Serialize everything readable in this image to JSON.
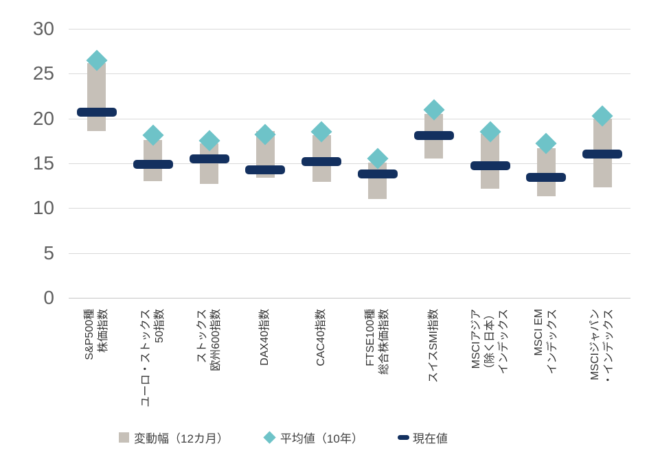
{
  "chart_data": {
    "type": "range-bar-with-markers",
    "title": "",
    "categories": [
      "S&P500種株価指数",
      "ユーロ・ストックス50指数",
      "ストックス欧州600指数",
      "DAX40指数",
      "CAC40指数",
      "FTSE100種総合株価指数",
      "スイスSMI指数",
      "MSCIアジア（除く日本）インデックス",
      "MSCI EMインデックス",
      "MSCIジャパン・インデックス"
    ],
    "category_label_lines": [
      [
        "S&P500種",
        "株価指数"
      ],
      [
        "ユーロ・ストックス",
        "50指数"
      ],
      [
        "ストックス",
        "欧州600指数"
      ],
      [
        "DAX40指数"
      ],
      [
        "CAC40指数"
      ],
      [
        "FTSE100種",
        "総合株価指数"
      ],
      [
        "スイスSMI指数"
      ],
      [
        "MSCIアジア",
        "（除く日本）",
        "インデックス"
      ],
      [
        "MSCI EM",
        "インデックス"
      ],
      [
        "MSCIジャパン",
        "・インデックス"
      ]
    ],
    "series": [
      {
        "name": "変動幅（12カ月）",
        "type": "range",
        "color": "#C6C0B8",
        "low": [
          18.6,
          13.0,
          12.7,
          13.4,
          12.9,
          11.0,
          15.5,
          12.2,
          11.3,
          12.3
        ],
        "high": [
          26.2,
          17.6,
          17.2,
          18.6,
          18.1,
          15.1,
          20.5,
          18.3,
          16.7,
          20.0
        ]
      },
      {
        "name": "平均値（10年）",
        "type": "diamond-marker",
        "color": "#6EC3C8",
        "values": [
          26.5,
          18.1,
          17.5,
          18.2,
          18.5,
          15.5,
          21.0,
          18.5,
          17.2,
          20.3
        ]
      },
      {
        "name": "現在値",
        "type": "dash-marker",
        "color": "#13305F",
        "values": [
          20.7,
          14.9,
          15.5,
          14.3,
          15.2,
          13.8,
          18.1,
          14.7,
          13.4,
          16.0
        ]
      }
    ],
    "y_axis": {
      "min": 0,
      "max": 30,
      "tick_step": 5,
      "tick_labels": [
        "0",
        "5",
        "10",
        "15",
        "20",
        "25",
        "30"
      ]
    },
    "x_axis": {
      "label_rotation_deg": -90
    },
    "grid": true,
    "legend_position": "bottom",
    "colors": {
      "gridline": "#D9D9D9",
      "axis_line": "#C6C6C6",
      "y_tick_text": "#5F5F5F",
      "x_tick_text": "#333333",
      "legend_text": "#404040",
      "background": "#FFFFFF"
    }
  }
}
